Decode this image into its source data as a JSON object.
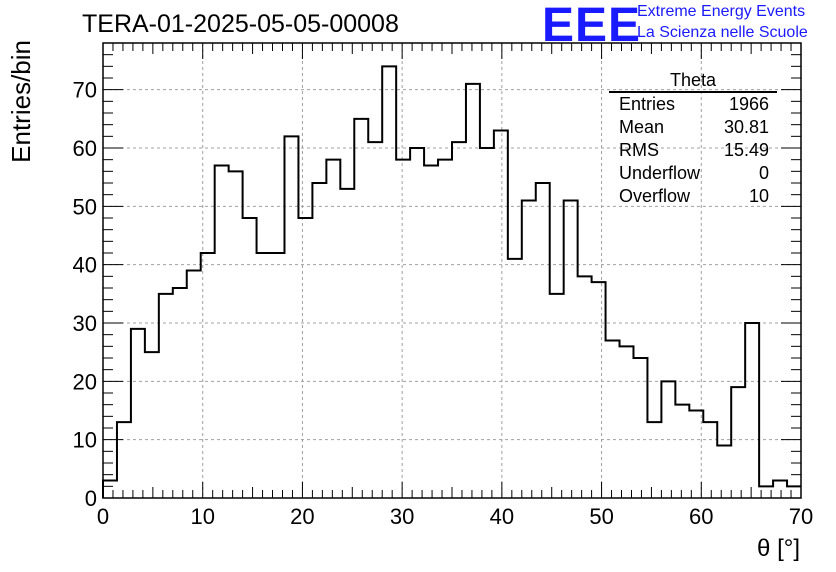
{
  "header": {
    "run_title": "TERA-01-2025-05-05-00008",
    "logo_text": "EEE",
    "logo_line1": "Extreme Energy Events",
    "logo_line2": "La Scienza nelle Scuole",
    "logo_color": "#1a1aff"
  },
  "stats_box": {
    "title": "Theta",
    "rows": [
      {
        "key": "Entries",
        "value": "1966"
      },
      {
        "key": "Mean",
        "value": "30.81"
      },
      {
        "key": "RMS",
        "value": "15.49"
      },
      {
        "key": "Underflow",
        "value": "0"
      },
      {
        "key": "Overflow",
        "value": "10"
      }
    ]
  },
  "chart_data": {
    "type": "histogram",
    "title": "TERA-01-2025-05-05-00008",
    "xlabel": "θ [°]",
    "ylabel": "Entries/bin",
    "xlim": [
      0,
      70
    ],
    "ylim": [
      0,
      78
    ],
    "grid": true,
    "grid_style": "dashed",
    "line_color": "#000000",
    "bin_width": 1.4,
    "bin_start": 0,
    "x_ticks": [
      0,
      10,
      20,
      30,
      40,
      50,
      60,
      70
    ],
    "y_ticks": [
      0,
      10,
      20,
      30,
      40,
      50,
      60,
      70
    ],
    "values": [
      3,
      13,
      29,
      25,
      35,
      36,
      39,
      42,
      57,
      56,
      48,
      42,
      42,
      62,
      48,
      54,
      58,
      53,
      65,
      61,
      74,
      58,
      60,
      57,
      58,
      61,
      71,
      60,
      63,
      41,
      51,
      54,
      35,
      51,
      38,
      37,
      27,
      26,
      24,
      13,
      20,
      16,
      15,
      13,
      9,
      19,
      30,
      2,
      3,
      2
    ]
  }
}
